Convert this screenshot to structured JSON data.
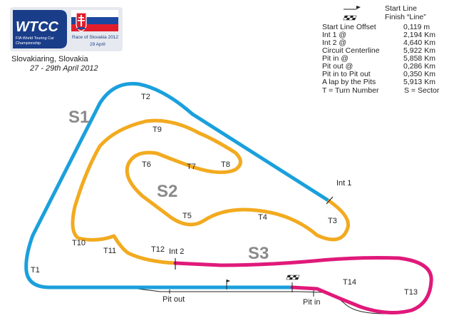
{
  "logo": {
    "wordmark": "WTCC",
    "subtitle_line1": "FIA World Touring Car",
    "subtitle_line2": "Championship",
    "race_name": "Race of Slovakia 2012",
    "race_date": "29 April"
  },
  "event": {
    "venue": "Slovakiaring, Slovakia",
    "dates": "27 - 29th April 2012"
  },
  "legend": {
    "start_line": "Start Line",
    "finish_line": "Finish “Line”",
    "rows": [
      {
        "label": "Start Line Offset",
        "value": "0,119 m"
      },
      {
        "label": "Int 1 @",
        "value": "2,194 Km"
      },
      {
        "label": "Int 2 @",
        "value": "4,640 Km"
      },
      {
        "label": "Circuit Centerline",
        "value": "5,922 Km"
      },
      {
        "label": "Pit in @",
        "value": "5,858 Km"
      },
      {
        "label": "Pit out @",
        "value": "0,286 Km"
      },
      {
        "label": "Pit in to Pit out",
        "value": "0,350 Km"
      },
      {
        "label": "A lap by the Pits",
        "value": "5,913 Km"
      }
    ],
    "footer_left": "T = Turn Number",
    "footer_right": "S = Sector"
  },
  "sectors": {
    "s1": "S1",
    "s2": "S2",
    "s3": "S3"
  },
  "turns": {
    "t1": "T1",
    "t2": "T2",
    "t3": "T3",
    "t4": "T4",
    "t5": "T5",
    "t6": "T6",
    "t7": "T7",
    "t8": "T8",
    "t9": "T9",
    "t10": "T10",
    "t11": "T11",
    "t12": "T12",
    "t13": "T13",
    "t14": "T14"
  },
  "markers": {
    "int1": "Int 1",
    "int2": "Int 2",
    "pit_out": "Pit out",
    "pit_in": "Pit in"
  },
  "colors": {
    "sector1": "#1aa0dc",
    "sector2": "#f2aa1f",
    "sector3": "#e0197a",
    "logo_blue": "#1a3d8a",
    "pit_lane": "#222222",
    "sector_text": "#8a8a8a"
  }
}
